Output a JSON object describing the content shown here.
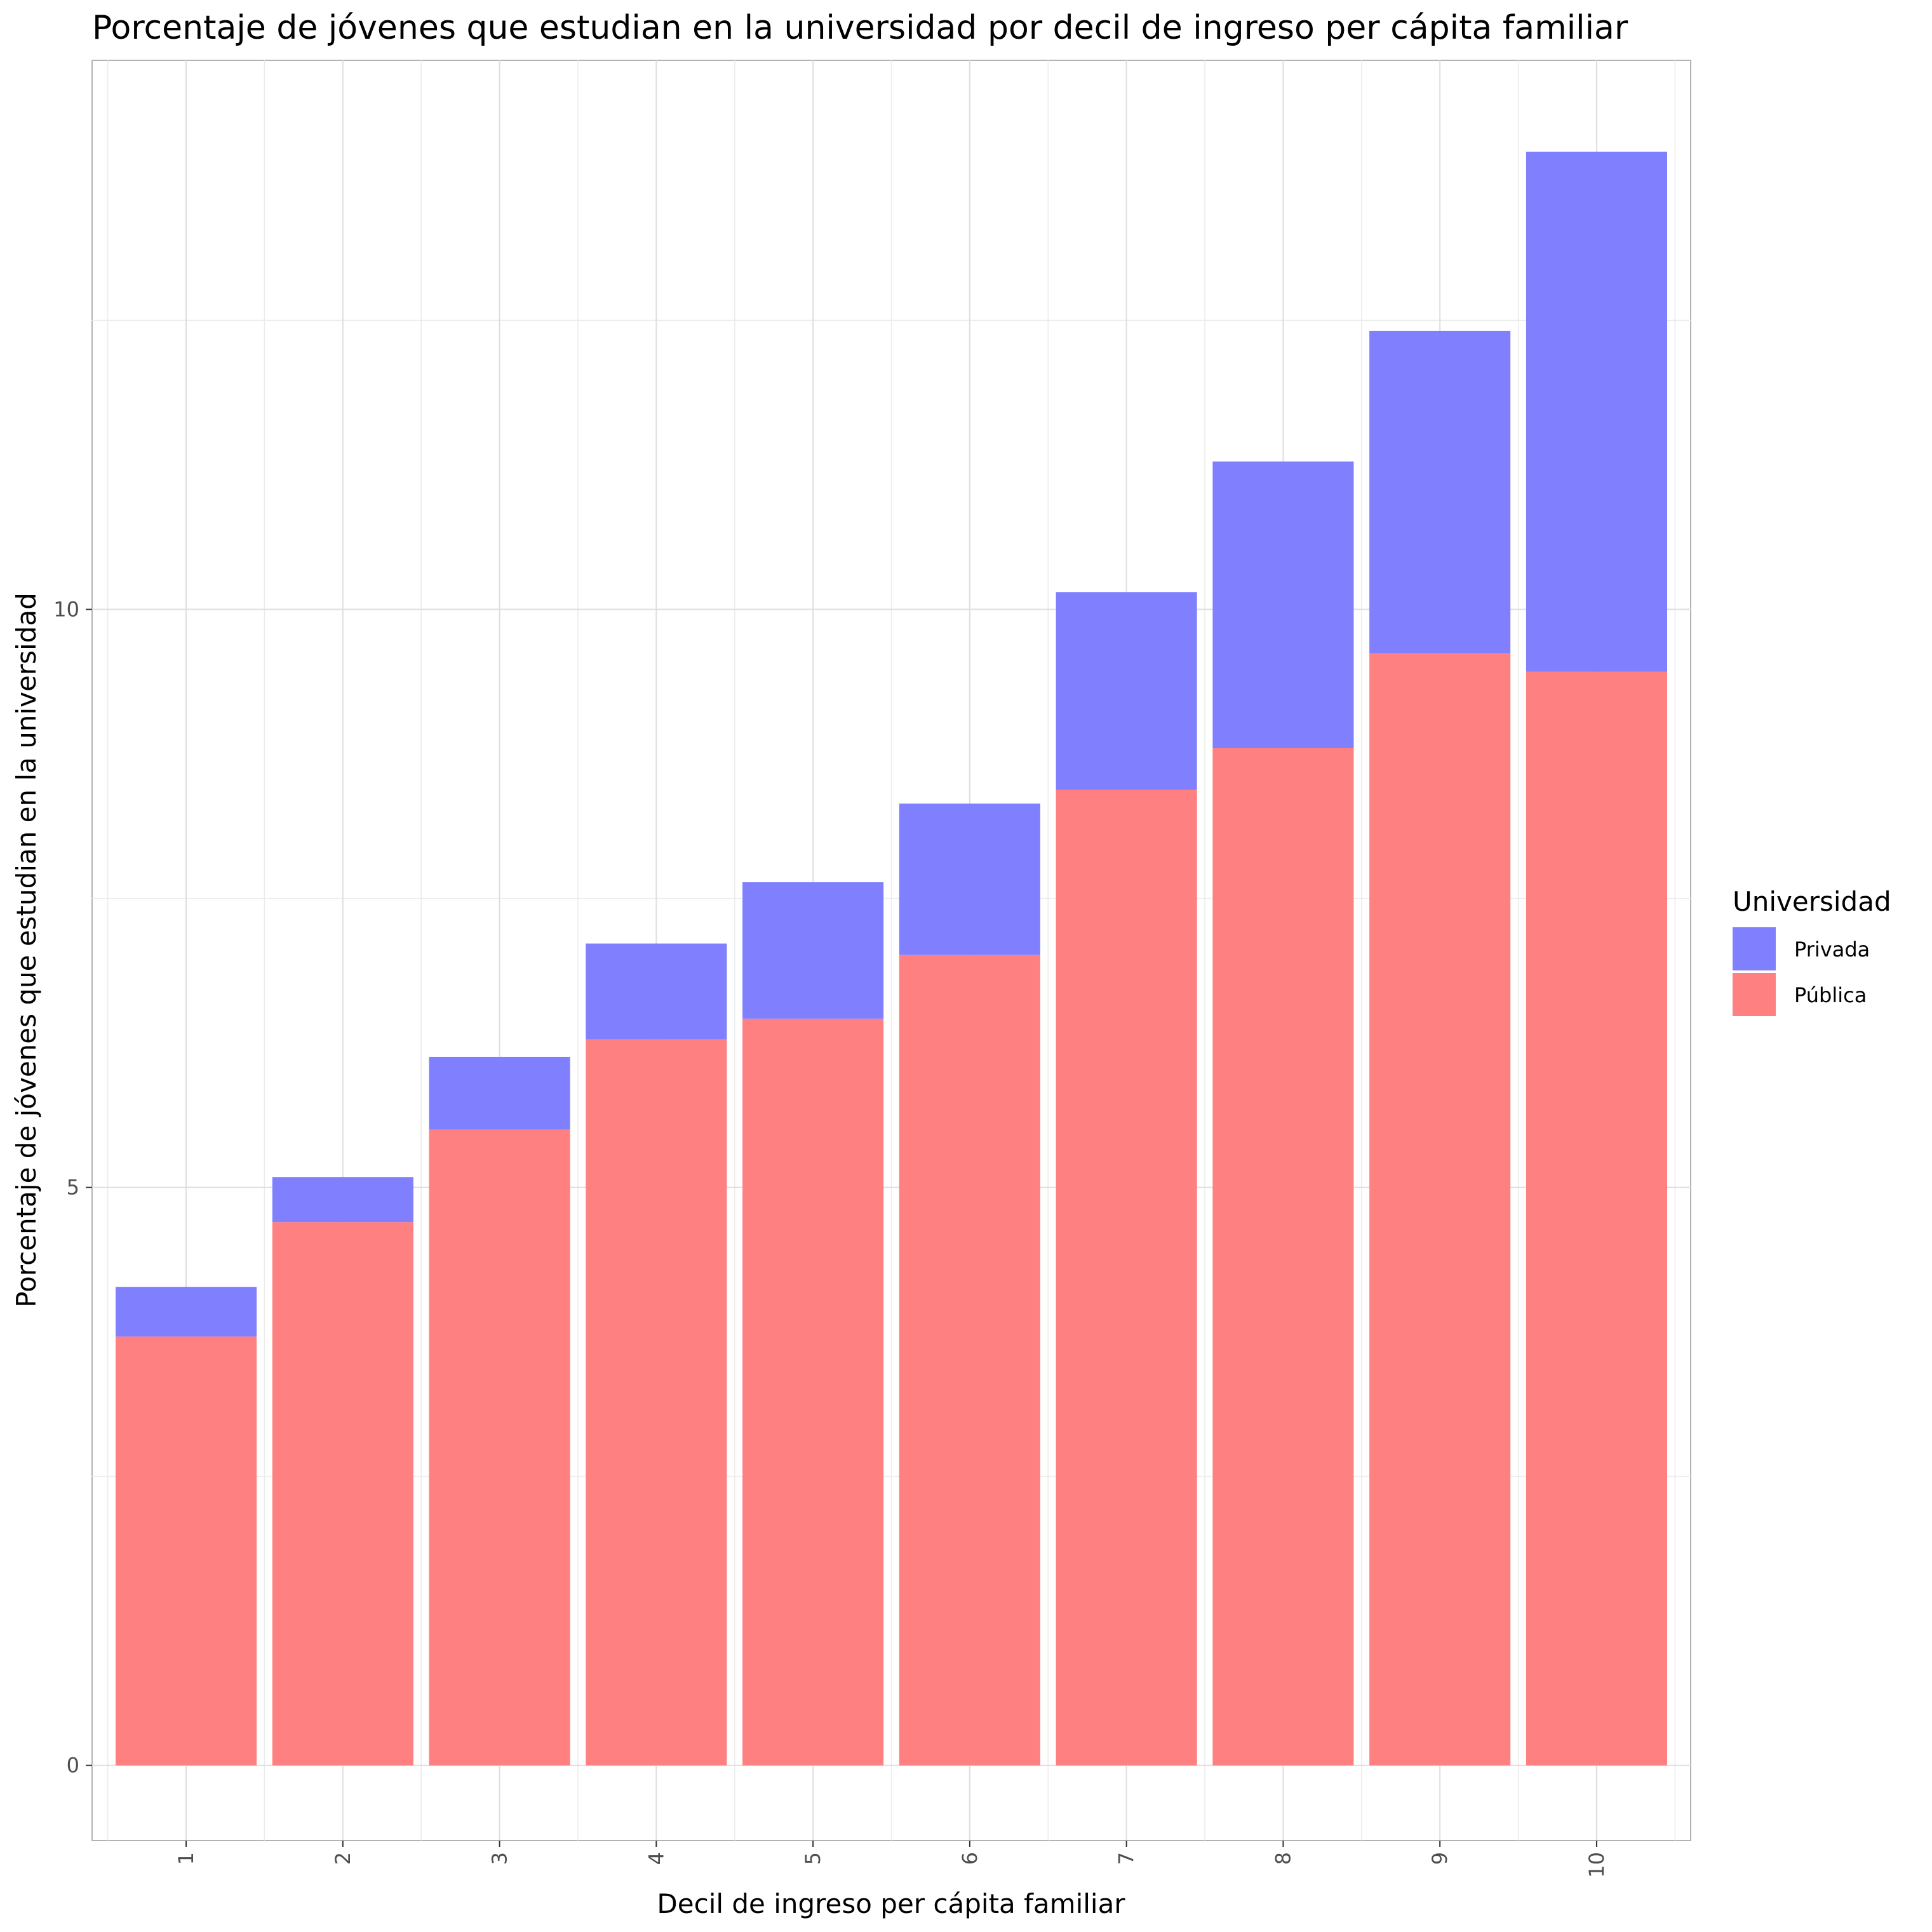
{
  "chart_data": {
    "type": "bar",
    "stacked": true,
    "title": "Porcentaje de jóvenes que estudian en la universidad por decil de ingreso per cápita familiar",
    "xlabel": "Decil de ingreso per cápita familiar",
    "ylabel": "Porcentaje de jóvenes que estudian en la universidad",
    "categories": [
      "1",
      "2",
      "3",
      "4",
      "5",
      "6",
      "7",
      "8",
      "9",
      "10"
    ],
    "yticks": [
      0,
      5,
      10
    ],
    "ylim": [
      -0.65,
      14.75
    ],
    "grid": true,
    "legend": {
      "title": "Universidad",
      "position": "right"
    },
    "series": [
      {
        "name": "Pública",
        "color": "#ff8080",
        "values": [
          3.71,
          4.7,
          5.5,
          6.28,
          6.46,
          7.01,
          8.44,
          8.8,
          9.62,
          9.46
        ]
      },
      {
        "name": "Privada",
        "color": "#8080ff",
        "values": [
          0.43,
          0.39,
          0.63,
          0.83,
          1.18,
          1.31,
          1.71,
          2.48,
          2.79,
          4.5
        ]
      }
    ]
  }
}
